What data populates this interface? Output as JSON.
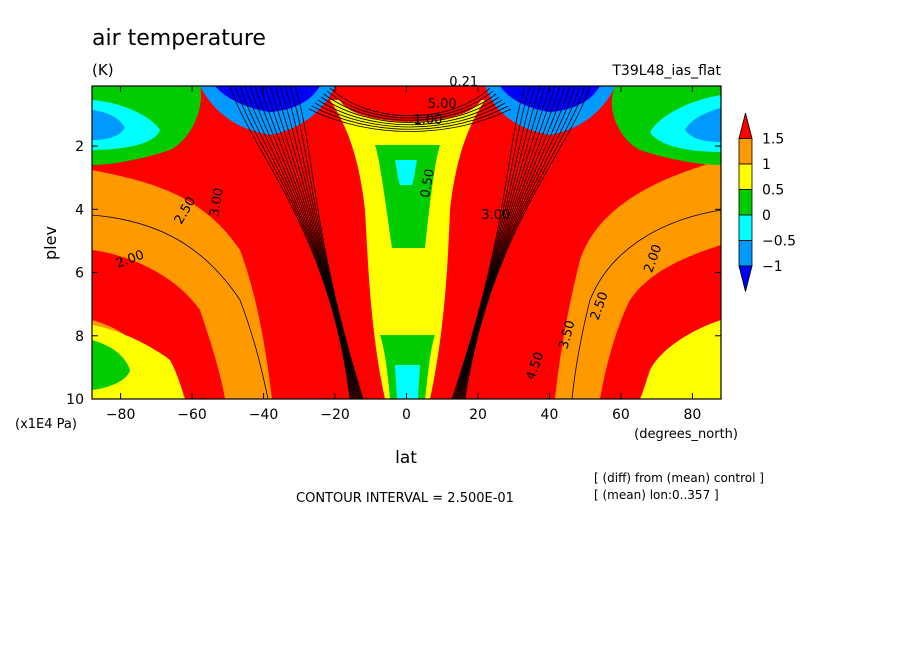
{
  "chart_data": {
    "type": "contour",
    "title": "air temperature",
    "units": "(K)",
    "run_label": "T39L48_ias_flat",
    "xlabel": "lat",
    "x_units": "(degrees_north)",
    "ylabel": "plev",
    "y_units": "(x1E4 Pa)",
    "xlim": [
      -88,
      88
    ],
    "ylim": [
      10,
      0.1
    ],
    "x_ticks": [
      -80,
      -60,
      -40,
      -20,
      0,
      20,
      40,
      60,
      80
    ],
    "y_ticks": [
      2,
      4,
      6,
      8,
      10
    ],
    "contour_interval_text": "CONTOUR INTERVAL = 2.500E-01",
    "notes": [
      "[ (diff) from (mean) control ]",
      "[ (mean) lon:0..357 ]"
    ],
    "colorbar": {
      "ticks": [
        "1.5",
        "1",
        "0.5",
        "0",
        "−0.5",
        "−1"
      ],
      "colors": [
        "#ff0000",
        "#ff9900",
        "#ffff00",
        "#00cc00",
        "#00ffff",
        "#0099ff",
        "#0000ff"
      ],
      "bounds": [
        1.5,
        1,
        0.5,
        0,
        -0.5,
        -1
      ]
    },
    "contour_labels": [
      {
        "text": "2.00",
        "x": -77,
        "y": 5.7,
        "angle": -20
      },
      {
        "text": "2.50",
        "x": -61,
        "y": 4.1,
        "angle": -60
      },
      {
        "text": "3.00",
        "x": -52,
        "y": 3.8,
        "angle": -80
      },
      {
        "text": "2.00",
        "x": 70,
        "y": 5.6,
        "angle": -70
      },
      {
        "text": "2.50",
        "x": 55,
        "y": 7.1,
        "angle": -70
      },
      {
        "text": "3.50",
        "x": 46,
        "y": 8.0,
        "angle": -75
      },
      {
        "text": "4.50",
        "x": 37,
        "y": 9.0,
        "angle": -70
      },
      {
        "text": "0.50",
        "x": 7,
        "y": 3.2,
        "angle": -80
      },
      {
        "text": "1.00",
        "x": 6,
        "y": 1.3,
        "angle": 0
      },
      {
        "text": "5.00",
        "x": 10,
        "y": 0.8,
        "angle": 0
      },
      {
        "text": "3.00",
        "x": 25,
        "y": 4.3,
        "angle": 0
      },
      {
        "text": "0.21",
        "x": 16,
        "y": 0.1,
        "angle": 0
      }
    ]
  }
}
